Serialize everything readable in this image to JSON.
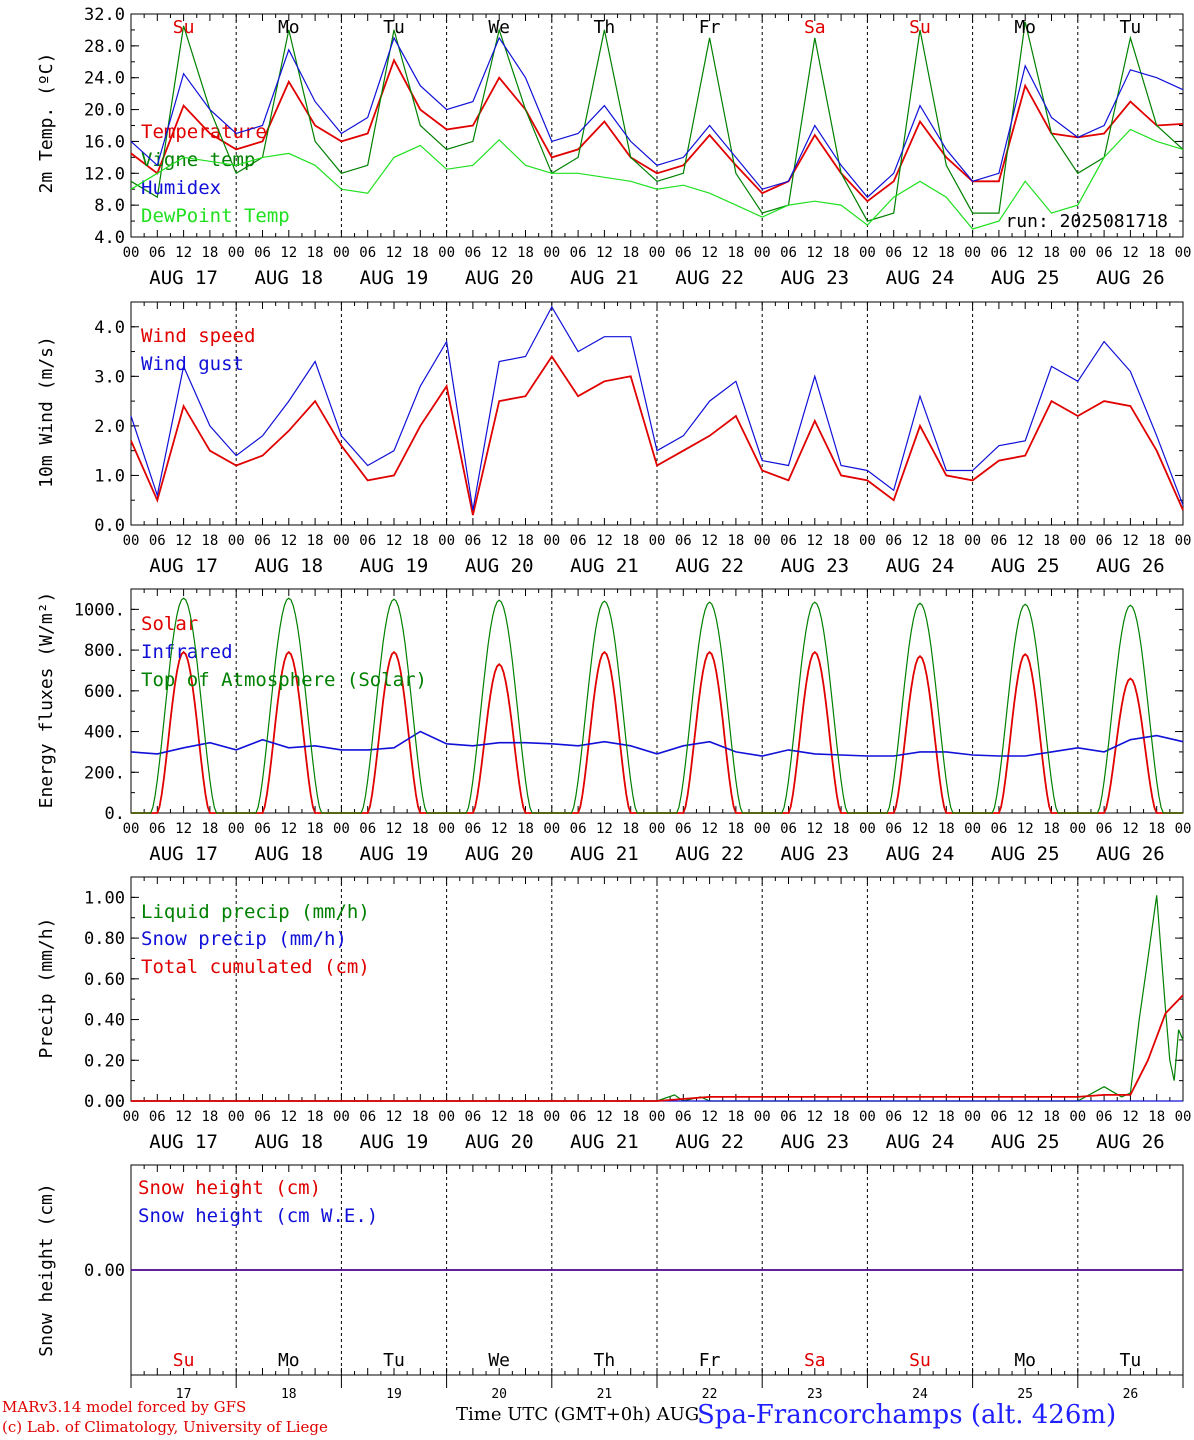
{
  "run_label": "run: 2025081718",
  "days": {
    "weekdays": [
      "Su",
      "Mo",
      "Tu",
      "We",
      "Th",
      "Fr",
      "Sa",
      "Su",
      "Mo",
      "Tu"
    ],
    "weekday_colors": [
      "#e00000",
      "#000000",
      "#000000",
      "#000000",
      "#000000",
      "#000000",
      "#e00000",
      "#e00000",
      "#000000",
      "#000000"
    ],
    "dates": [
      "AUG 17",
      "AUG 18",
      "AUG 19",
      "AUG 20",
      "AUG 21",
      "AUG 22",
      "AUG 23",
      "AUG 24",
      "AUG 25",
      "AUG 26"
    ],
    "day_numbers": [
      "17",
      "18",
      "19",
      "20",
      "21",
      "22",
      "23",
      "24",
      "25",
      "26"
    ],
    "hour_ticks": [
      "00",
      "06",
      "12",
      "18"
    ],
    "final_hour_tick": "00"
  },
  "colors": {
    "red": "#e00000",
    "green": "#008000",
    "blue": "#1010d8",
    "lightgreen": "#20e020"
  },
  "footer": {
    "credit_line1": "MARv3.14 model forced by GFS",
    "credit_line2": "(c) Lab. of Climatology, University of Liege",
    "xlabel": "Time UTC (GMT+0h) AUG",
    "station": "Spa-Francorchamps (alt. 426m)"
  },
  "chart_data": [
    {
      "type": "line",
      "ylabel": "2m Temp. (ºC)",
      "ylim": [
        4,
        32
      ],
      "yticks": [
        "4.0",
        "8.0",
        "12.0",
        "16.0",
        "20.0",
        "24.0",
        "28.0",
        "32.0"
      ],
      "grid": "vertical dotted at day boundaries",
      "legend_placement": "left",
      "series": [
        {
          "name": "Temperature",
          "color": "#e00000",
          "x_hours": [
            0,
            6,
            12,
            18,
            24,
            30,
            36,
            42,
            48,
            54,
            60,
            66,
            72,
            78,
            84,
            90,
            96,
            102,
            108,
            114,
            120,
            126,
            132,
            138,
            144,
            150,
            156,
            162,
            168,
            174,
            180,
            186,
            192,
            198,
            204,
            210,
            216,
            222,
            228,
            234,
            240
          ],
          "values": [
            14.5,
            12,
            20.5,
            17,
            15,
            16,
            23.5,
            18,
            16,
            17,
            26.2,
            20,
            17.5,
            18,
            24,
            20,
            14,
            15,
            18.5,
            14,
            12,
            13,
            16.8,
            13,
            9.5,
            11,
            16.8,
            12,
            8.5,
            11,
            18.5,
            14,
            11,
            11,
            23,
            17,
            16.5,
            17,
            21,
            18,
            18.2
          ]
        },
        {
          "name": "Vigne temp",
          "color": "#008000",
          "x_hours": [
            0,
            6,
            12,
            18,
            24,
            30,
            36,
            42,
            48,
            54,
            60,
            66,
            72,
            78,
            84,
            90,
            96,
            102,
            108,
            114,
            120,
            126,
            132,
            138,
            144,
            150,
            156,
            162,
            168,
            174,
            180,
            186,
            192,
            198,
            204,
            210,
            216,
            222,
            228,
            234,
            240
          ],
          "values": [
            11,
            9,
            30.5,
            20,
            12,
            14,
            30,
            16,
            12,
            13,
            30,
            18,
            15,
            16,
            30,
            20,
            12,
            14,
            30,
            14,
            11,
            12,
            29,
            12,
            7,
            8,
            29,
            12,
            6,
            7,
            30,
            13,
            7,
            7,
            31,
            17,
            12,
            14,
            29,
            18,
            15
          ]
        },
        {
          "name": "Humidex",
          "color": "#1010d8",
          "x_hours": [
            0,
            6,
            12,
            18,
            24,
            30,
            36,
            42,
            48,
            54,
            60,
            66,
            72,
            78,
            84,
            90,
            96,
            102,
            108,
            114,
            120,
            126,
            132,
            138,
            144,
            150,
            156,
            162,
            168,
            174,
            180,
            186,
            192,
            198,
            204,
            210,
            216,
            222,
            228,
            234,
            240
          ],
          "values": [
            16,
            13,
            24.5,
            20,
            17,
            18,
            27.5,
            21,
            17,
            19,
            29,
            23,
            20,
            21,
            29,
            24,
            16,
            17,
            20.5,
            16,
            13,
            14,
            18,
            14,
            10,
            11,
            18,
            13,
            9,
            12,
            20.5,
            15,
            11,
            12,
            25.5,
            19,
            16.5,
            18,
            25,
            24,
            22.5
          ]
        },
        {
          "name": "DewPoint Temp",
          "color": "#20e020",
          "x_hours": [
            0,
            6,
            12,
            18,
            24,
            30,
            36,
            42,
            48,
            54,
            60,
            66,
            72,
            78,
            84,
            90,
            96,
            102,
            108,
            114,
            120,
            126,
            132,
            138,
            144,
            150,
            156,
            162,
            168,
            174,
            180,
            186,
            192,
            198,
            204,
            210,
            216,
            222,
            228,
            234,
            240
          ],
          "values": [
            10,
            12,
            14,
            13.5,
            13,
            14,
            14.5,
            13,
            10,
            9.5,
            14,
            15.5,
            12.5,
            13,
            16.2,
            13,
            12,
            12,
            11.5,
            11,
            10,
            10.5,
            9.5,
            8,
            6.5,
            8,
            8.5,
            8,
            5.5,
            9,
            11,
            9,
            5,
            6,
            11,
            7,
            8,
            14,
            17.5,
            16,
            15
          ]
        }
      ]
    },
    {
      "type": "line",
      "ylabel": "10m Wind (m/s)",
      "ylim": [
        0,
        4.5
      ],
      "yticks": [
        "0.0",
        "1.0",
        "2.0",
        "3.0",
        "4.0"
      ],
      "legend_placement": "left",
      "series": [
        {
          "name": "Wind speed",
          "color": "#e00000",
          "x_hours": [
            0,
            6,
            12,
            18,
            24,
            30,
            36,
            42,
            48,
            54,
            60,
            66,
            72,
            78,
            84,
            90,
            96,
            102,
            108,
            114,
            120,
            126,
            132,
            138,
            144,
            150,
            156,
            162,
            168,
            174,
            180,
            186,
            192,
            198,
            204,
            210,
            216,
            222,
            228,
            234,
            240
          ],
          "values": [
            1.7,
            0.5,
            2.4,
            1.5,
            1.2,
            1.4,
            1.9,
            2.5,
            1.6,
            0.9,
            1.0,
            2.0,
            2.8,
            0.2,
            2.5,
            2.6,
            3.4,
            2.6,
            2.9,
            3.0,
            1.2,
            1.5,
            1.8,
            2.2,
            1.1,
            0.9,
            2.1,
            1.0,
            0.9,
            0.5,
            2.0,
            1.0,
            0.9,
            1.3,
            1.4,
            2.5,
            2.2,
            2.5,
            2.4,
            1.5,
            0.3
          ]
        },
        {
          "name": "Wind gust",
          "color": "#1010d8",
          "x_hours": [
            0,
            6,
            12,
            18,
            24,
            30,
            36,
            42,
            48,
            54,
            60,
            66,
            72,
            78,
            84,
            90,
            96,
            102,
            108,
            114,
            120,
            126,
            132,
            138,
            144,
            150,
            156,
            162,
            168,
            174,
            180,
            186,
            192,
            198,
            204,
            210,
            216,
            222,
            228,
            234,
            240
          ],
          "values": [
            2.2,
            0.6,
            3.2,
            2.0,
            1.4,
            1.8,
            2.5,
            3.3,
            1.8,
            1.2,
            1.5,
            2.8,
            3.7,
            0.3,
            3.3,
            3.4,
            4.4,
            3.5,
            3.8,
            3.8,
            1.5,
            1.8,
            2.5,
            2.9,
            1.3,
            1.2,
            3.0,
            1.2,
            1.1,
            0.7,
            2.6,
            1.1,
            1.1,
            1.6,
            1.7,
            3.2,
            2.9,
            3.7,
            3.1,
            1.8,
            0.4
          ]
        }
      ]
    },
    {
      "type": "line",
      "ylabel": "Energy fluxes (W/m²)",
      "ylim": [
        0,
        1100
      ],
      "yticks": [
        "0.",
        "200.",
        "400.",
        "600.",
        "800.",
        "1000."
      ],
      "legend_placement": "left",
      "series": [
        {
          "name": "Solar",
          "color": "#e00000",
          "day_peaks": [
            790,
            790,
            790,
            730,
            790,
            790,
            790,
            770,
            780,
            660
          ]
        },
        {
          "name": "Infrared",
          "color": "#1010d8",
          "x_hours": [
            0,
            6,
            12,
            18,
            24,
            30,
            36,
            42,
            48,
            54,
            60,
            66,
            72,
            78,
            84,
            90,
            96,
            102,
            108,
            114,
            120,
            126,
            132,
            138,
            144,
            150,
            156,
            162,
            168,
            174,
            180,
            186,
            192,
            198,
            204,
            210,
            216,
            222,
            228,
            234,
            240
          ],
          "values": [
            300,
            290,
            320,
            345,
            310,
            360,
            320,
            330,
            310,
            310,
            320,
            400,
            340,
            330,
            345,
            345,
            340,
            330,
            350,
            330,
            290,
            330,
            350,
            300,
            280,
            310,
            290,
            285,
            280,
            280,
            300,
            300,
            285,
            280,
            280,
            300,
            320,
            300,
            360,
            380,
            350
          ]
        },
        {
          "name": "Top of Atmosphere (Solar)",
          "color": "#008000",
          "day_peaks": [
            1055,
            1055,
            1050,
            1045,
            1040,
            1035,
            1035,
            1030,
            1025,
            1020
          ]
        }
      ]
    },
    {
      "type": "line",
      "ylabel": "Precip (mm/h)",
      "ylim": [
        0,
        1.1
      ],
      "yticks": [
        "0.00",
        "0.20",
        "0.40",
        "0.60",
        "0.80",
        "1.00"
      ],
      "legend_placement": "left",
      "series": [
        {
          "name": "Liquid precip (mm/h)",
          "color": "#008000",
          "x_hours": [
            0,
            120,
            124,
            126,
            130,
            132,
            216,
            222,
            226,
            228,
            230,
            232,
            234,
            236,
            237,
            238,
            239,
            240
          ],
          "values": [
            0,
            0,
            0.03,
            0,
            0.02,
            0,
            0,
            0.07,
            0.02,
            0.04,
            0.4,
            0.7,
            1.01,
            0.45,
            0.2,
            0.1,
            0.35,
            0.3
          ]
        },
        {
          "name": "Snow precip (mm/h)",
          "color": "#1010d8",
          "x_hours": [
            0,
            240
          ],
          "values": [
            0,
            0
          ]
        },
        {
          "name": "Total cumulated (cm)",
          "color": "#e00000",
          "x_hours": [
            0,
            120,
            132,
            216,
            222,
            228,
            232,
            236,
            240
          ],
          "values": [
            0,
            0,
            0.02,
            0.02,
            0.03,
            0.03,
            0.2,
            0.43,
            0.52
          ]
        }
      ]
    },
    {
      "type": "line",
      "ylabel": "Snow height (cm)",
      "yticks": [
        "0.00"
      ],
      "legend_placement": "left",
      "series": [
        {
          "name": "Snow height (cm)",
          "color": "#e00000",
          "x_hours": [
            0,
            240
          ],
          "values": [
            0,
            0
          ]
        },
        {
          "name": "Snow height (cm W.E.)",
          "color": "#1010d8",
          "x_hours": [
            0,
            240
          ],
          "values": [
            0,
            0
          ]
        }
      ]
    }
  ]
}
